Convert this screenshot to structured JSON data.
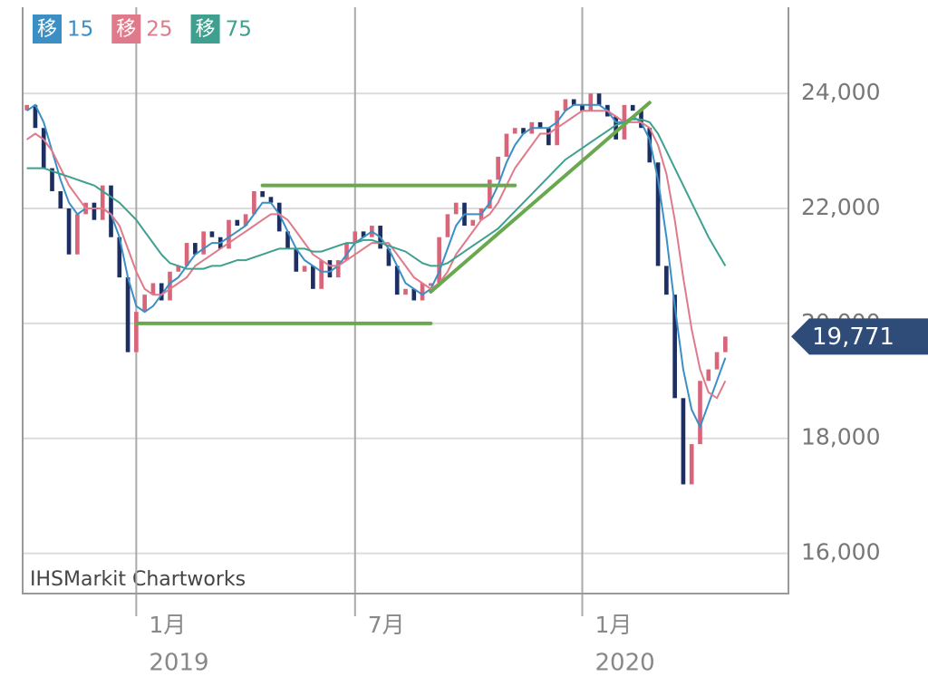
{
  "chart_data": {
    "type": "candlestick",
    "footer": "IHSMarkit Chartworks",
    "ylim": [
      15300,
      25500
    ],
    "yticks": [
      {
        "value": 16000,
        "label": "16,000"
      },
      {
        "value": 18000,
        "label": "18,000"
      },
      {
        "value": 20000,
        "label": "20,000"
      },
      {
        "value": 22000,
        "label": "22,000"
      },
      {
        "value": 24000,
        "label": "24,000"
      }
    ],
    "xlim": [
      -0.5,
      90.5
    ],
    "xticks": [
      {
        "value": 13,
        "label": "1月",
        "year": "2019"
      },
      {
        "value": 39,
        "label": "7月"
      },
      {
        "value": 66,
        "label": "1月",
        "year": "2020"
      }
    ],
    "grid": true,
    "up_color": "#d9657a",
    "down_color": "#1d2f62",
    "values": [
      23800,
      23400,
      22700,
      22300,
      22000,
      21200,
      21900,
      22100,
      21800,
      22400,
      21500,
      20800,
      19500,
      20200,
      20500,
      20700,
      20400,
      20900,
      21000,
      21400,
      21200,
      21600,
      21500,
      21300,
      21800,
      21700,
      21900,
      22300,
      22200,
      22100,
      21600,
      21300,
      20900,
      21000,
      20600,
      21100,
      20800,
      21100,
      21400,
      21600,
      21500,
      21700,
      21300,
      21000,
      20500,
      20600,
      20400,
      20700,
      20700,
      21500,
      21900,
      22100,
      21700,
      21800,
      22000,
      22500,
      22900,
      23300,
      23400,
      23300,
      23500,
      23400,
      23100,
      23700,
      23900,
      23800,
      23700,
      24000,
      23800,
      23600,
      23200,
      23800,
      23700,
      23400,
      22800,
      21000,
      20500,
      18700,
      17200,
      17900,
      19000,
      19200,
      19500,
      19771
    ],
    "value_labels": [
      null,
      null,
      null,
      null,
      null,
      null,
      null,
      null,
      null,
      null,
      null,
      null,
      null,
      null,
      null,
      null,
      null,
      null,
      null,
      null,
      null,
      null,
      null,
      null,
      null,
      null,
      null,
      null,
      null,
      null,
      null,
      null,
      null,
      null,
      null,
      null,
      null,
      null,
      null,
      null,
      null,
      null,
      null,
      null,
      null,
      null,
      null,
      null,
      null,
      null,
      null,
      null,
      null,
      null,
      null,
      null,
      null,
      null,
      null,
      null,
      null,
      null,
      null,
      null,
      null,
      null,
      null,
      null,
      null,
      null,
      null,
      null,
      null,
      null,
      null,
      null,
      null,
      null,
      null,
      null,
      null,
      null,
      null,
      "19,771"
    ],
    "label_color": "#2f4b78",
    "series": [
      {
        "badge": "移",
        "name": "15",
        "color": "#3b8fc4",
        "values": [
          23700,
          23800,
          23500,
          23000,
          22500,
          22100,
          21900,
          22000,
          22000,
          22000,
          21900,
          21500,
          20800,
          20300,
          20200,
          20300,
          20500,
          20700,
          20800,
          21000,
          21200,
          21300,
          21400,
          21400,
          21500,
          21600,
          21700,
          21900,
          22100,
          22100,
          21900,
          21600,
          21300,
          21100,
          21000,
          20900,
          20900,
          21000,
          21200,
          21400,
          21500,
          21600,
          21500,
          21300,
          21000,
          20700,
          20600,
          20500,
          20600,
          20900,
          21300,
          21700,
          21900,
          21900,
          21900,
          22100,
          22400,
          22800,
          23100,
          23300,
          23400,
          23400,
          23400,
          23500,
          23700,
          23800,
          23800,
          23800,
          23800,
          23700,
          23500,
          23500,
          23600,
          23500,
          23200,
          22500,
          21500,
          20300,
          19200,
          18500,
          18200,
          18600,
          19000,
          19400
        ]
      },
      {
        "badge": "移",
        "name": "25",
        "color": "#e07a8a",
        "values": [
          23200,
          23300,
          23200,
          23000,
          22700,
          22400,
          22200,
          22000,
          22000,
          22000,
          21900,
          21700,
          21300,
          20900,
          20600,
          20500,
          20500,
          20600,
          20700,
          20800,
          21000,
          21100,
          21200,
          21300,
          21400,
          21500,
          21600,
          21700,
          21800,
          21900,
          21900,
          21800,
          21600,
          21400,
          21200,
          21100,
          21000,
          21000,
          21100,
          21200,
          21300,
          21400,
          21400,
          21400,
          21200,
          21000,
          20800,
          20700,
          20600,
          20700,
          20900,
          21200,
          21400,
          21600,
          21800,
          21900,
          22100,
          22400,
          22700,
          22900,
          23100,
          23300,
          23300,
          23400,
          23500,
          23600,
          23700,
          23700,
          23700,
          23700,
          23600,
          23500,
          23500,
          23500,
          23400,
          23100,
          22600,
          21800,
          20800,
          19900,
          19200,
          18800,
          18700,
          19000
        ]
      },
      {
        "badge": "移",
        "name": "75",
        "color": "#3fa08f",
        "values": [
          22700,
          22700,
          22700,
          22650,
          22600,
          22550,
          22500,
          22450,
          22400,
          22300,
          22200,
          22100,
          21950,
          21800,
          21600,
          21400,
          21200,
          21050,
          21000,
          20950,
          20950,
          20950,
          21000,
          21000,
          21050,
          21100,
          21100,
          21150,
          21200,
          21250,
          21300,
          21300,
          21300,
          21300,
          21250,
          21250,
          21300,
          21350,
          21400,
          21400,
          21450,
          21450,
          21400,
          21350,
          21300,
          21250,
          21150,
          21050,
          21000,
          21000,
          21050,
          21150,
          21250,
          21350,
          21450,
          21550,
          21650,
          21800,
          21950,
          22100,
          22250,
          22400,
          22550,
          22700,
          22850,
          22950,
          23050,
          23150,
          23250,
          23350,
          23450,
          23500,
          23550,
          23550,
          23500,
          23300,
          23000,
          22700,
          22400,
          22100,
          21800,
          21500,
          21250,
          21000
        ]
      }
    ],
    "trendline_color": "#6aa84f",
    "trendlines": [
      {
        "x": [
          28,
          58
        ],
        "y": [
          22400,
          22400
        ]
      },
      {
        "x": [
          13,
          48
        ],
        "y": [
          20000,
          20000
        ]
      },
      {
        "x": [
          48,
          74
        ],
        "y": [
          20550,
          23840
        ]
      }
    ]
  }
}
